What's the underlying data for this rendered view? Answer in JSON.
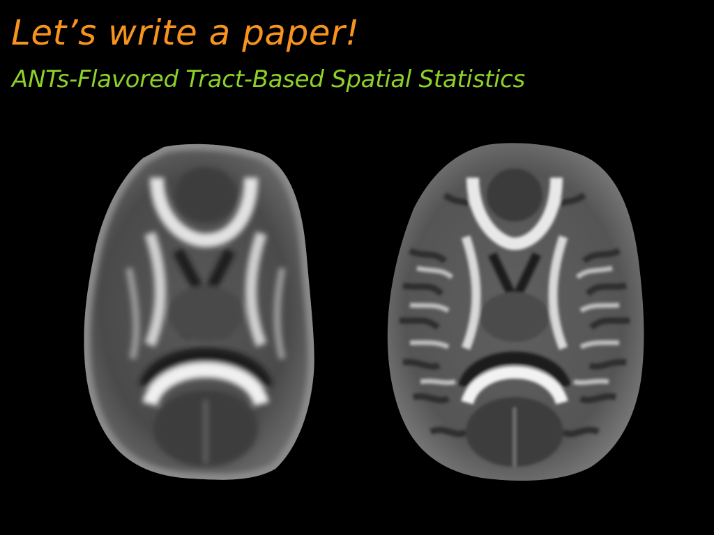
{
  "slide": {
    "title": "Let’s write a paper!",
    "subtitle": "ANTs-Flavored Tract-Based Spatial Statistics"
  },
  "colors": {
    "background": "#000000",
    "title": "#F7931E",
    "subtitle": "#8CD22A"
  },
  "images": [
    {
      "name": "fa-map-smooth-axial-slice",
      "icon": "brain-axial-mri"
    },
    {
      "name": "fa-map-detailed-axial-slice",
      "icon": "brain-axial-mri"
    }
  ]
}
